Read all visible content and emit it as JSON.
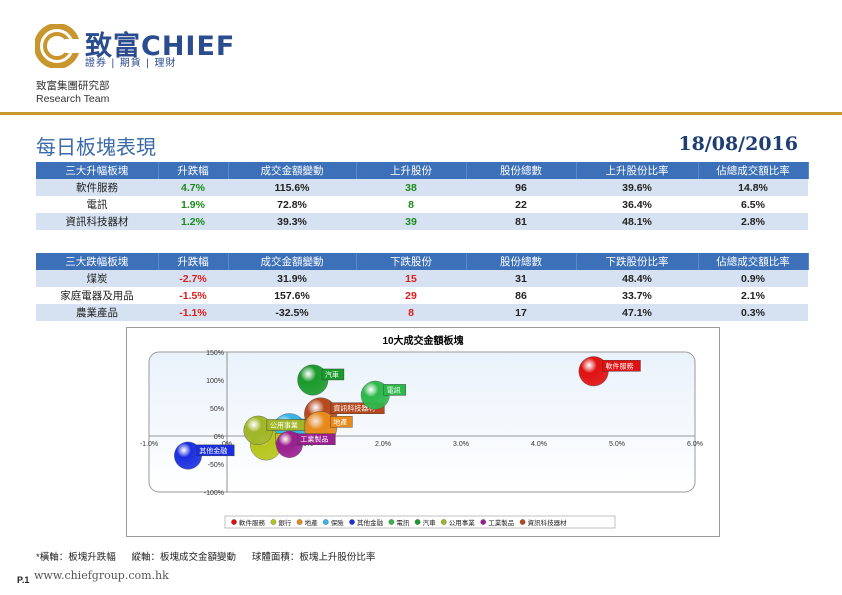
{
  "header": {
    "brand_name": "致富CHIEF",
    "brand_sub": "證券 | 期貨 | 理財",
    "dept_line1": "致富集團研究部",
    "dept_line2": "Research Team"
  },
  "report": {
    "title": "每日板塊表現",
    "date": "18/08/2016"
  },
  "gainers": {
    "headers": [
      "三大升幅板塊",
      "升跌幅",
      "成交金額變動",
      "上升股份",
      "股份總數",
      "上升股份比率",
      "佔總成交額比率"
    ],
    "rows": [
      [
        "軟件服務",
        "4.7%",
        "115.6%",
        "38",
        "96",
        "39.6%",
        "14.8%"
      ],
      [
        "電訊",
        "1.9%",
        "72.8%",
        "8",
        "22",
        "36.4%",
        "6.5%"
      ],
      [
        "資訊科技器材",
        "1.2%",
        "39.3%",
        "39",
        "81",
        "48.1%",
        "2.8%"
      ]
    ]
  },
  "losers": {
    "headers": [
      "三大跌幅板塊",
      "升跌幅",
      "成交金額變動",
      "下跌股份",
      "股份總數",
      "下跌股份比率",
      "佔總成交額比率"
    ],
    "rows": [
      [
        "煤炭",
        "-2.7%",
        "31.9%",
        "15",
        "31",
        "48.4%",
        "0.9%"
      ],
      [
        "家庭電器及用品",
        "-1.5%",
        "157.6%",
        "29",
        "86",
        "33.7%",
        "2.1%"
      ],
      [
        "農業產品",
        "-1.1%",
        "-32.5%",
        "8",
        "17",
        "47.1%",
        "0.3%"
      ]
    ]
  },
  "colors": {
    "gain": "#1a8a1a",
    "loss": "#e11b1b",
    "header_bg": "#3c70b8",
    "accent_line": "#c9962d"
  },
  "chart_data": {
    "type": "scatter",
    "title": "10大成交金額板塊",
    "xlim": [
      -1.0,
      6.0
    ],
    "ylim": [
      -100,
      150
    ],
    "x_ticks": [
      "-1.0%",
      "0%",
      "1.0%",
      "2.0%",
      "3.0%",
      "4.0%",
      "5.0%",
      "6.0%"
    ],
    "x_tick_values": [
      -1,
      0,
      1,
      2,
      3,
      4,
      5,
      6
    ],
    "y_ticks": [
      "150%",
      "100%",
      "50%",
      "0%",
      "-50%",
      "-100%"
    ],
    "y_tick_values": [
      150,
      100,
      50,
      0,
      -50,
      -100
    ],
    "legend_position": "bottom",
    "series": [
      {
        "name": "軟件服務",
        "x": 4.7,
        "y": 115.6,
        "size": 39.6,
        "color": "#e01010"
      },
      {
        "name": "銀行",
        "x": 0.5,
        "y": -15,
        "size": 45,
        "color": "#b7c51c"
      },
      {
        "name": "地產",
        "x": 1.2,
        "y": 15,
        "size": 48,
        "color": "#e78a1a"
      },
      {
        "name": "保險",
        "x": 0.8,
        "y": 10,
        "size": 52,
        "color": "#35b4e6"
      },
      {
        "name": "其他金融",
        "x": -0.5,
        "y": -35,
        "size": 34,
        "color": "#1b2fe0"
      },
      {
        "name": "電訊",
        "x": 1.9,
        "y": 72.8,
        "size": 36.4,
        "color": "#2db84a"
      },
      {
        "name": "汽車",
        "x": 1.1,
        "y": 100,
        "size": 42,
        "color": "#1a9a2a"
      },
      {
        "name": "公用事業",
        "x": 0.4,
        "y": 10,
        "size": 38,
        "color": "#a0b528"
      },
      {
        "name": "工業製品",
        "x": 0.8,
        "y": -15,
        "size": 32,
        "color": "#9a1f8f"
      },
      {
        "name": "資訊科技器材",
        "x": 1.2,
        "y": 39.3,
        "size": 48.1,
        "color": "#b5471d"
      }
    ]
  },
  "footer": {
    "note": "*橫軸：板塊升跌幅      縱軸：板塊成交金額變動      球體面積：板塊上升股份比率",
    "page": "P.1",
    "website": "www.chiefgroup.com.hk"
  }
}
